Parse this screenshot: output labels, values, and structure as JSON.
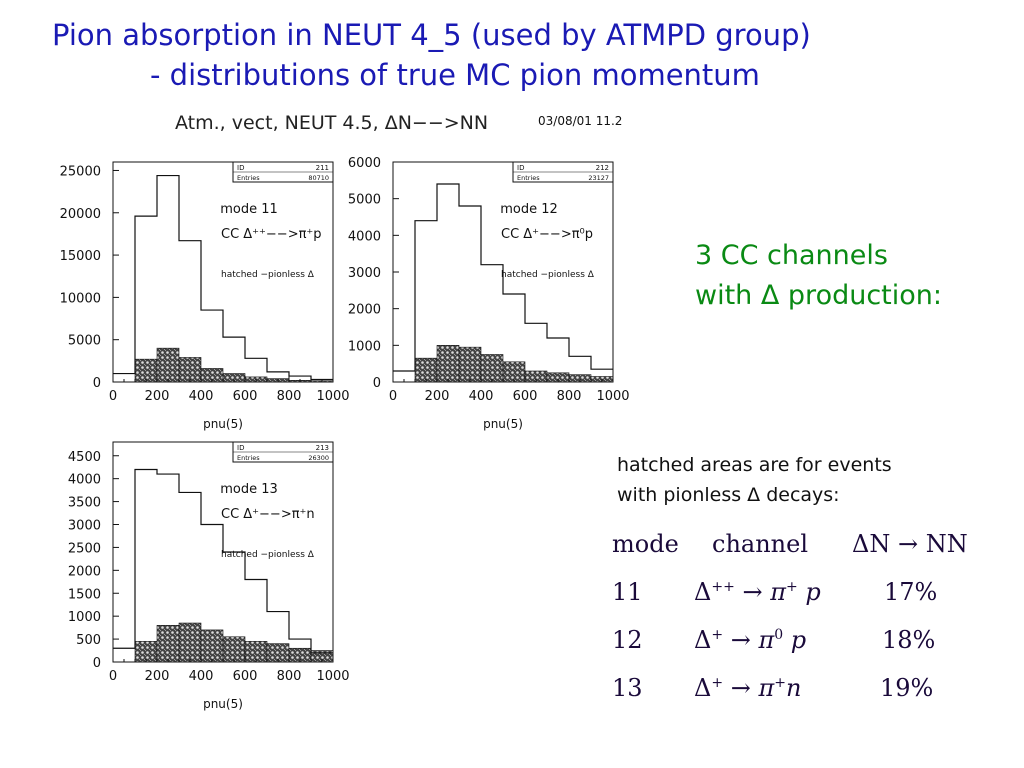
{
  "slide": {
    "title_line1": "Pion absorption in NEUT 4_5 (used by ATMPD group)",
    "title_line2": "- distributions of true MC pion momentum",
    "figure_title": "Atm., vect, NEUT 4.5,  ΔN−−>NN",
    "figure_stamp": "03/08/01  11.2",
    "summary_line1": "3 CC channels",
    "summary_line2": "with Δ production:",
    "note_line1": "hatched areas are for events",
    "note_line2": "with pionless Δ decays:",
    "table": {
      "headers": [
        "mode",
        "channel",
        "ΔN → NN"
      ],
      "rows": [
        {
          "mode": "11",
          "delta": "Δ",
          "delta_charge": "++",
          "pion_charge": "+",
          "nucleon": "p",
          "fraction": "17%"
        },
        {
          "mode": "12",
          "delta": "Δ",
          "delta_charge": "+",
          "pion_charge": "0",
          "nucleon": "p",
          "fraction": "18%"
        },
        {
          "mode": "13",
          "delta": "Δ",
          "delta_charge": "+",
          "pion_charge": "+",
          "nucleon": "n",
          "fraction": "19%"
        }
      ]
    }
  },
  "colors": {
    "title": "#1a1ab4",
    "summary": "#0a8a14",
    "table_text": "#1a0a3a"
  },
  "chart_data": [
    {
      "type": "bar",
      "id": "211",
      "stat_box": {
        "id_label": "ID",
        "id": "211",
        "entries_label": "Entries",
        "entries": "80710"
      },
      "mode_label": "mode 11",
      "reaction_label": "CC Δ⁺⁺−−>π⁺p",
      "hatched_label": "hatched −pionless Δ",
      "xlabel": "pnu(5)",
      "xlim": [
        0,
        1000
      ],
      "ylim": [
        0,
        26000
      ],
      "xticks": [
        0,
        200,
        400,
        600,
        800,
        1000
      ],
      "yticks": [
        0,
        5000,
        10000,
        15000,
        20000,
        25000
      ],
      "bin_edges": [
        0,
        100,
        200,
        300,
        400,
        500,
        600,
        700,
        800,
        900,
        1000
      ],
      "series": [
        {
          "name": "all",
          "values": [
            1000,
            19600,
            24400,
            16700,
            8500,
            5300,
            2800,
            1200,
            700,
            300
          ]
        },
        {
          "name": "pionless",
          "values": [
            0,
            2700,
            4000,
            2900,
            1600,
            1000,
            600,
            400,
            200,
            150
          ]
        }
      ]
    },
    {
      "type": "bar",
      "id": "212",
      "stat_box": {
        "id_label": "ID",
        "id": "212",
        "entries_label": "Entries",
        "entries": "23127"
      },
      "mode_label": "mode 12",
      "reaction_label": "CC Δ⁺−−>π⁰p",
      "hatched_label": "hatched −pionless Δ",
      "xlabel": "pnu(5)",
      "xlim": [
        0,
        1000
      ],
      "ylim": [
        0,
        6000
      ],
      "xticks": [
        0,
        200,
        400,
        600,
        800,
        1000
      ],
      "yticks": [
        0,
        1000,
        2000,
        3000,
        4000,
        5000,
        6000
      ],
      "bin_edges": [
        0,
        100,
        200,
        300,
        400,
        500,
        600,
        700,
        800,
        900,
        1000
      ],
      "series": [
        {
          "name": "all",
          "values": [
            300,
            4400,
            5400,
            4800,
            3200,
            2400,
            1600,
            1200,
            700,
            350
          ]
        },
        {
          "name": "pionless",
          "values": [
            0,
            650,
            1000,
            950,
            750,
            550,
            300,
            250,
            200,
            150
          ]
        }
      ]
    },
    {
      "type": "bar",
      "id": "213",
      "stat_box": {
        "id_label": "ID",
        "id": "213",
        "entries_label": "Entries",
        "entries": "26300"
      },
      "mode_label": "mode 13",
      "reaction_label": "CC Δ⁺−−>π⁺n",
      "hatched_label": "hatched −pionless Δ",
      "xlabel": "pnu(5)",
      "xlim": [
        0,
        1000
      ],
      "ylim": [
        0,
        4800
      ],
      "xticks": [
        0,
        200,
        400,
        600,
        800,
        1000
      ],
      "yticks": [
        0,
        500,
        1000,
        1500,
        2000,
        2500,
        3000,
        3500,
        4000,
        4500
      ],
      "bin_edges": [
        0,
        100,
        200,
        300,
        400,
        500,
        600,
        700,
        800,
        900,
        1000
      ],
      "series": [
        {
          "name": "all",
          "values": [
            300,
            4200,
            4100,
            3700,
            3000,
            2400,
            1800,
            1100,
            500,
            200
          ]
        },
        {
          "name": "pionless",
          "values": [
            0,
            450,
            800,
            850,
            700,
            550,
            450,
            400,
            300,
            250
          ]
        }
      ]
    }
  ]
}
